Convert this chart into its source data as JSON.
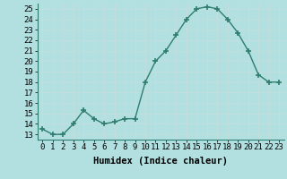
{
  "x": [
    0,
    1,
    2,
    3,
    4,
    5,
    6,
    7,
    8,
    9,
    10,
    11,
    12,
    13,
    14,
    15,
    16,
    17,
    18,
    19,
    20,
    21,
    22,
    23
  ],
  "y": [
    13.5,
    13,
    13,
    14,
    15.3,
    14.5,
    14,
    14.2,
    14.5,
    14.5,
    18,
    20,
    21,
    22.5,
    24,
    25,
    25.2,
    25,
    24,
    22.7,
    21,
    18.7,
    18,
    18
  ],
  "line_color": "#2e7d6e",
  "marker_color": "#2e7d6e",
  "bg_color": "#b2e0e0",
  "grid_color": "#d0e8e8",
  "xlabel": "Humidex (Indice chaleur)",
  "xlim": [
    -0.5,
    23.5
  ],
  "ylim": [
    12.5,
    25.5
  ],
  "yticks": [
    13,
    14,
    15,
    16,
    17,
    18,
    19,
    20,
    21,
    22,
    23,
    24,
    25
  ],
  "xticks": [
    0,
    1,
    2,
    3,
    4,
    5,
    6,
    7,
    8,
    9,
    10,
    11,
    12,
    13,
    14,
    15,
    16,
    17,
    18,
    19,
    20,
    21,
    22,
    23
  ],
  "tick_fontsize": 6.5,
  "label_fontsize": 7.5
}
